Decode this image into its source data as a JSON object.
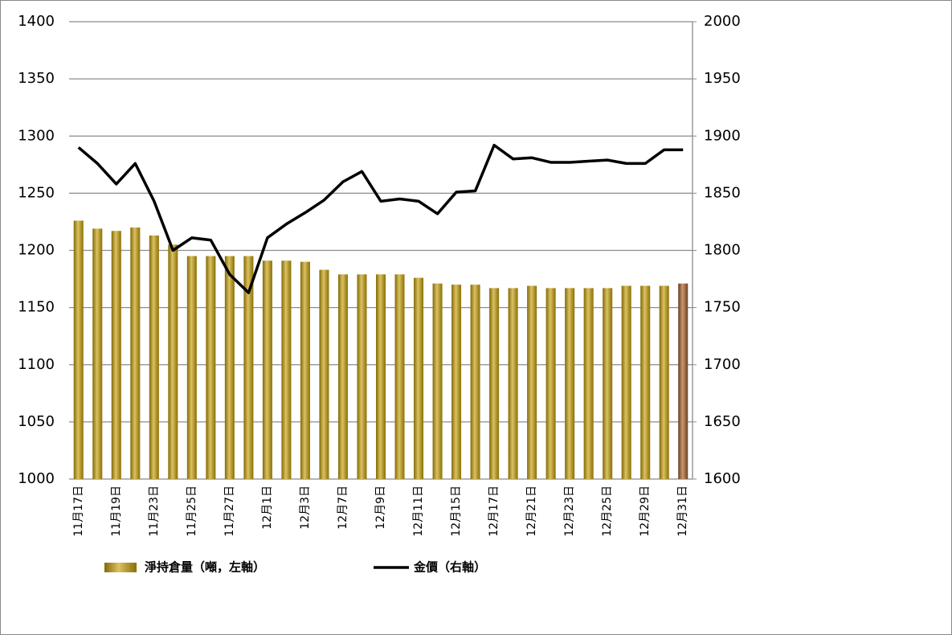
{
  "chart_data": {
    "type": "bar-line",
    "categories": [
      "11月17日",
      null,
      "11月19日",
      null,
      "11月23日",
      null,
      "11月25日",
      null,
      "11月27日",
      null,
      "12月1日",
      null,
      "12月3日",
      null,
      "12月7日",
      null,
      "12月9日",
      null,
      "12月11日",
      null,
      "12月15日",
      null,
      "12月17日",
      null,
      "12月21日",
      null,
      "12月23日",
      null,
      "12月25日",
      null,
      "12月29日",
      null,
      "12月31日"
    ],
    "series": [
      {
        "name": "淨持倉量（噸，左軸）",
        "type": "bar",
        "color": "#c9a20c",
        "colors": [
          "#c9a20c",
          "#c9a20c",
          "#c9a20c",
          "#c9a20c",
          "#c9a20c",
          "#c9a20c",
          "#c9a20c",
          "#c9a20c",
          "#c9a20c",
          "#c9a20c",
          "#c9a20c",
          "#c9a20c",
          "#c9a20c",
          "#c9a20c",
          "#c9a20c",
          "#c9a20c",
          "#c9a20c",
          "#c9a20c",
          "#c9a20c",
          "#c9a20c",
          "#c9a20c",
          "#c9a20c",
          "#c9a20c",
          "#c9a20c",
          "#c9a20c",
          "#c9a20c",
          "#c9a20c",
          "#c9a20c",
          "#c9a20c",
          "#c9a20c",
          "#c9a20c",
          "#c9a20c",
          "#a9602c"
        ],
        "values": [
          1226,
          1219,
          1217,
          1220,
          1213,
          1205,
          1195,
          1195,
          1195,
          1195,
          1191,
          1191,
          1190,
          1183,
          1179,
          1179,
          1179,
          1179,
          1176,
          1171,
          1170,
          1170,
          1167,
          1167,
          1169,
          1167,
          1167,
          1167,
          1167,
          1169,
          1169,
          1169,
          1171
        ]
      },
      {
        "name": "金價（右軸）",
        "type": "line",
        "axis": "y2",
        "color": "#000000",
        "values": [
          1890,
          1876,
          1858,
          1876,
          1843,
          1800,
          1811,
          1809,
          1779,
          1763,
          1811,
          1823,
          1833,
          1844,
          1860,
          1869,
          1843,
          1845,
          1843,
          1832,
          1851,
          1852,
          1892,
          1880,
          1881,
          1877,
          1877,
          1878,
          1879,
          1876,
          1876,
          1888,
          1888
        ]
      }
    ],
    "ylim": [
      1000,
      1400
    ],
    "yticks": [
      1000,
      1050,
      1100,
      1150,
      1200,
      1250,
      1300,
      1350,
      1400
    ],
    "y2lim": [
      1600,
      2000
    ],
    "y2ticks": [
      1600,
      1650,
      1700,
      1750,
      1800,
      1850,
      1900,
      1950,
      2000
    ],
    "grid": true,
    "legend": "bottom"
  }
}
